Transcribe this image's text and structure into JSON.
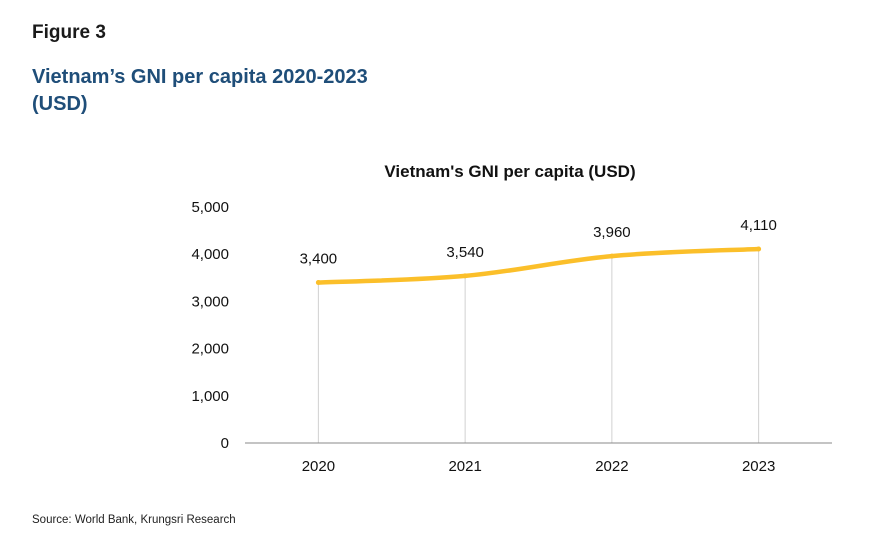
{
  "header": {
    "figure_label": "Figure 3",
    "title_line1": "Vietnam’s GNI per capita 2020-2023",
    "title_line2": "(USD)"
  },
  "source": "Source: World Bank, Krungsri Research",
  "chart_data": {
    "type": "line",
    "title": "Vietnam's GNI per capita (USD)",
    "xlabel": "",
    "ylabel": "",
    "categories": [
      "2020",
      "2021",
      "2022",
      "2023"
    ],
    "series": [
      {
        "values": [
          3400,
          3540,
          3960,
          4110
        ],
        "color": "#fbbf2a"
      }
    ],
    "data_labels": [
      "3,400",
      "3,540",
      "3,960",
      "4,110"
    ],
    "ylim": [
      0,
      5000
    ],
    "yticks": [
      0,
      1000,
      2000,
      3000,
      4000,
      5000
    ],
    "ytick_labels": [
      "0",
      "1,000",
      "2,000",
      "3,000",
      "4,000",
      "5,000"
    ],
    "grid": "vertical drop lines",
    "legend": "none"
  }
}
